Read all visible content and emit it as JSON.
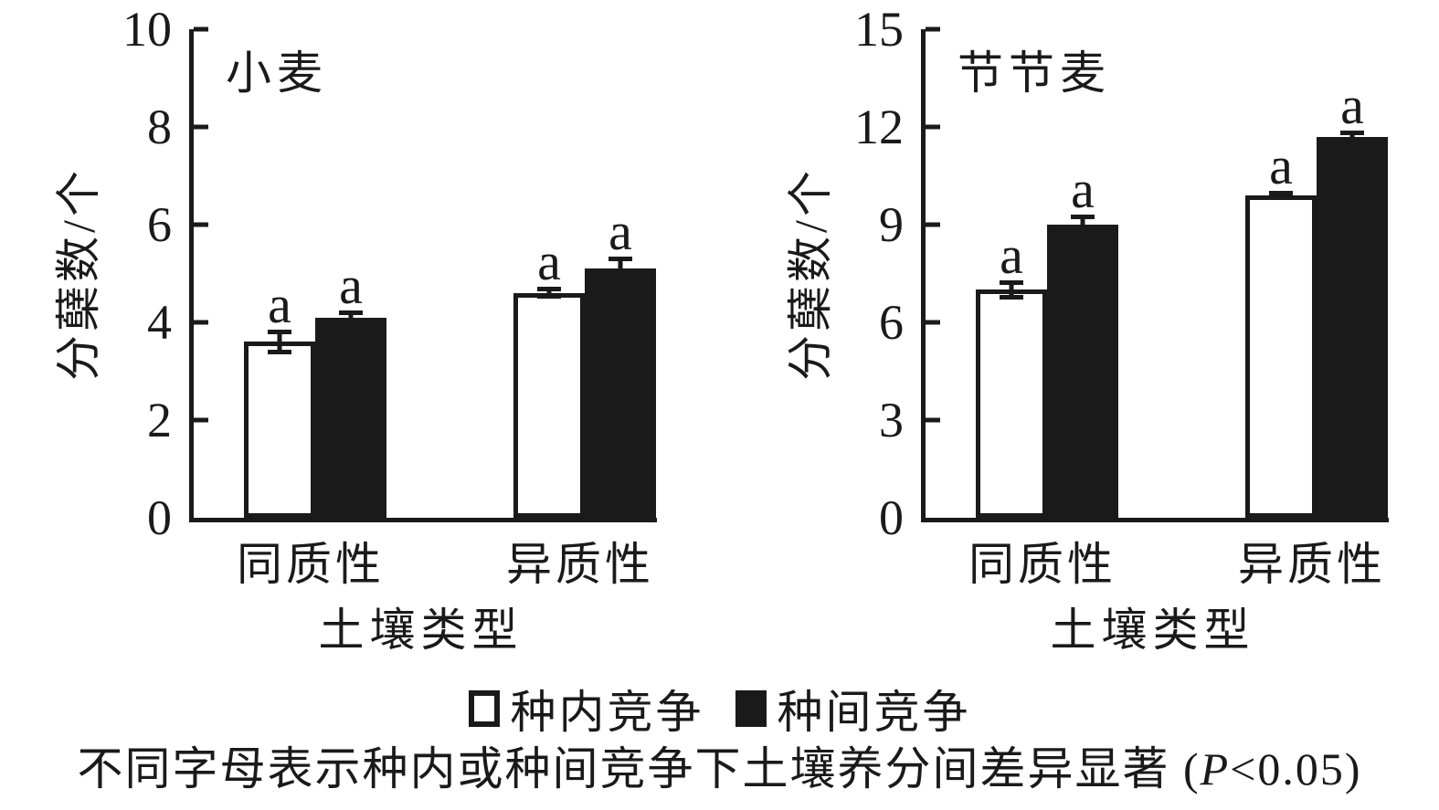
{
  "figure": {
    "ink_color": "#1a1a1a",
    "background": "#ffffff"
  },
  "chart_data": [
    {
      "type": "bar",
      "title": "小麦",
      "ylabel": "分蘖数/个",
      "xlabel": "土壤类型",
      "categories": [
        "同质性",
        "异质性"
      ],
      "ylim": [
        0,
        10
      ],
      "yticks": [
        0,
        2,
        4,
        6,
        8,
        10
      ],
      "grid": false,
      "legend_position": "bottom-shared",
      "series": [
        {
          "name": "种内竞争",
          "style": "open",
          "values": [
            3.6,
            4.6
          ],
          "errors": [
            0.25,
            0.12
          ],
          "sig_labels": [
            "a",
            "a"
          ]
        },
        {
          "name": "种间竞争",
          "style": "filled",
          "values": [
            4.1,
            5.1
          ],
          "errors": [
            0.15,
            0.25
          ],
          "sig_labels": [
            "a",
            "a"
          ]
        }
      ]
    },
    {
      "type": "bar",
      "title": "节节麦",
      "ylabel": "分蘖数/个",
      "xlabel": "土壤类型",
      "categories": [
        "同质性",
        "异质性"
      ],
      "ylim": [
        0,
        15
      ],
      "yticks": [
        0,
        3,
        6,
        9,
        12,
        15
      ],
      "grid": false,
      "legend_position": "bottom-shared",
      "series": [
        {
          "name": "种内竞争",
          "style": "open",
          "values": [
            7.0,
            9.9
          ],
          "errors": [
            0.3,
            0.15
          ],
          "sig_labels": [
            "a",
            "a"
          ]
        },
        {
          "name": "种间竞争",
          "style": "filled",
          "values": [
            9.0,
            11.7
          ],
          "errors": [
            0.3,
            0.2
          ],
          "sig_labels": [
            "a",
            "a"
          ]
        }
      ]
    }
  ],
  "legend": {
    "items": [
      {
        "label": "种内竞争",
        "fill": "#ffffff"
      },
      {
        "label": "种间竞争",
        "fill": "#1a1a1a"
      }
    ]
  },
  "caption": {
    "pre": "不同字母表示种内或种间竞争下土壤养分间差异显著 (",
    "p": "P",
    "post": "<0.05)"
  }
}
